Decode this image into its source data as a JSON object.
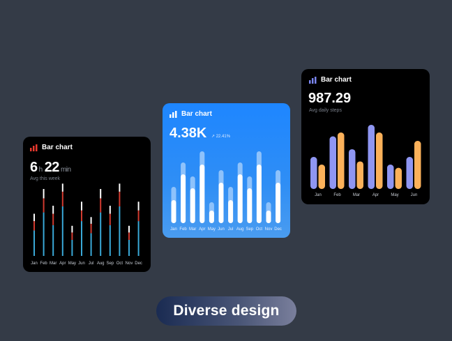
{
  "cards": [
    {
      "title": "Bar chart",
      "value_hours": "6",
      "value_hours_unit": "h",
      "value_minutes": "22",
      "value_minutes_unit": "min",
      "subtitle": "Avg this week",
      "icon": "bar-chart-icon",
      "icon_color": "#e8392e"
    },
    {
      "title": "Bar chart",
      "value": "4.38K",
      "delta": "22.41%",
      "icon": "bar-chart-icon",
      "icon_color": "#ffffff"
    },
    {
      "title": "Bar chart",
      "value": "987.29",
      "subtitle": "Avg daily steps",
      "icon": "bar-chart-icon",
      "icon_color": "#7b86f0"
    }
  ],
  "pill_label": "Diverse design",
  "chart_data": [
    {
      "type": "bar",
      "title": "Bar chart",
      "categories": [
        "Jan",
        "Feb",
        "Mar",
        "Apr",
        "May",
        "Jun",
        "Jul",
        "Aug",
        "Sep",
        "Oct",
        "Nov",
        "Dec"
      ],
      "series": [
        {
          "values": [
            0.38,
            0.65,
            0.46,
            0.74,
            0.24,
            0.52,
            0.34,
            0.65,
            0.46,
            0.74,
            0.24,
            0.52
          ]
        },
        {
          "values": [
            0.14,
            0.21,
            0.17,
            0.22,
            0.11,
            0.16,
            0.14,
            0.21,
            0.17,
            0.22,
            0.11,
            0.16
          ]
        },
        {
          "values": [
            0.11,
            0.14,
            0.12,
            0.12,
            0.1,
            0.13,
            0.1,
            0.14,
            0.12,
            0.12,
            0.1,
            0.13
          ]
        }
      ],
      "colors": [
        "#3aa9d8",
        "#d13a2f",
        "#ffffff"
      ]
    },
    {
      "type": "bar",
      "title": "Bar chart",
      "categories": [
        "Jan",
        "Feb",
        "Mar",
        "Apr",
        "May",
        "Jun",
        "Jul",
        "Aug",
        "Sep",
        "Oct",
        "Nov",
        "Dec"
      ],
      "series": [
        {
          "values": [
            0.33,
            0.7,
            0.5,
            0.84,
            0.18,
            0.58,
            0.33,
            0.7,
            0.5,
            0.84,
            0.18,
            0.58
          ]
        },
        {
          "values": [
            0.19,
            0.17,
            0.17,
            0.19,
            0.12,
            0.18,
            0.19,
            0.17,
            0.17,
            0.19,
            0.12,
            0.18
          ]
        }
      ],
      "colors": [
        "#ffffff",
        "#8ec2fb"
      ]
    },
    {
      "type": "bar",
      "title": "Bar chart",
      "categories": [
        "Jan",
        "Feb",
        "Mar",
        "Apr",
        "May",
        "Jun"
      ],
      "series": [
        {
          "values": [
            0.5,
            0.82,
            0.62,
            1.0,
            0.38,
            0.5
          ]
        },
        {
          "values": [
            0.38,
            0.88,
            0.43,
            0.88,
            0.33,
            0.75
          ]
        }
      ],
      "colors": [
        "#8f96f2",
        "#fbb15a"
      ]
    }
  ]
}
